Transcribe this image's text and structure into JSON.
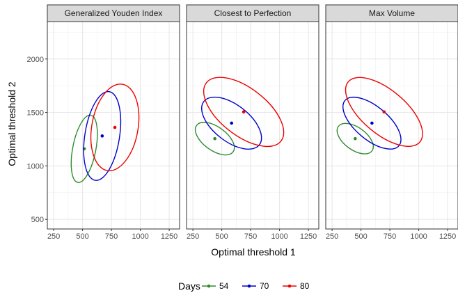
{
  "chart_data": {
    "type": "scatter",
    "xlabel": "Optimal threshold 1",
    "ylabel": "Optimal threshold 2",
    "xlim": [
      195,
      1340
    ],
    "ylim": [
      410,
      2350
    ],
    "x_ticks": [
      250,
      500,
      750,
      1000,
      1250
    ],
    "y_ticks": [
      500,
      1000,
      1500,
      2000
    ],
    "grid": true,
    "legend": {
      "title": "Days",
      "placement": "bottom",
      "entries": [
        {
          "label": "54",
          "color": "#2E8B2E"
        },
        {
          "label": "70",
          "color": "#0000CC"
        },
        {
          "label": "80",
          "color": "#EE0000"
        }
      ]
    },
    "panels": [
      {
        "title": "Generalized Youden Index",
        "series": [
          {
            "name": "54",
            "color": "#2E8B2E",
            "point": [
              515,
              1160
            ],
            "ellipse": {
              "rx": 100,
              "ry": 320,
              "angle": 11
            }
          },
          {
            "name": "70",
            "color": "#0000CC",
            "point": [
              670,
              1280
            ],
            "ellipse": {
              "rx": 150,
              "ry": 420,
              "angle": 9
            }
          },
          {
            "name": "80",
            "color": "#EE0000",
            "point": [
              780,
              1360
            ],
            "ellipse": {
              "rx": 200,
              "ry": 410,
              "angle": 10
            }
          }
        ]
      },
      {
        "title": "Closest to Perfection",
        "series": [
          {
            "name": "54",
            "color": "#2E8B2E",
            "point": [
              440,
              1255
            ],
            "ellipse": {
              "rx": 195,
              "ry": 110,
              "angle": 36
            }
          },
          {
            "name": "70",
            "color": "#0000CC",
            "point": [
              585,
              1400
            ],
            "ellipse": {
              "rx": 305,
              "ry": 170,
              "angle": 38
            }
          },
          {
            "name": "80",
            "color": "#EE0000",
            "point": [
              690,
              1505
            ],
            "ellipse": {
              "rx": 410,
              "ry": 220,
              "angle": 38
            }
          }
        ]
      },
      {
        "title": "Max Volume",
        "series": [
          {
            "name": "54",
            "color": "#2E8B2E",
            "point": [
              450,
              1255
            ],
            "ellipse": {
              "rx": 180,
              "ry": 105,
              "angle": 36
            }
          },
          {
            "name": "70",
            "color": "#0000CC",
            "point": [
              595,
              1400
            ],
            "ellipse": {
              "rx": 305,
              "ry": 155,
              "angle": 40
            }
          },
          {
            "name": "80",
            "color": "#EE0000",
            "point": [
              700,
              1505
            ],
            "ellipse": {
              "rx": 405,
              "ry": 205,
              "angle": 40
            }
          }
        ]
      }
    ]
  }
}
